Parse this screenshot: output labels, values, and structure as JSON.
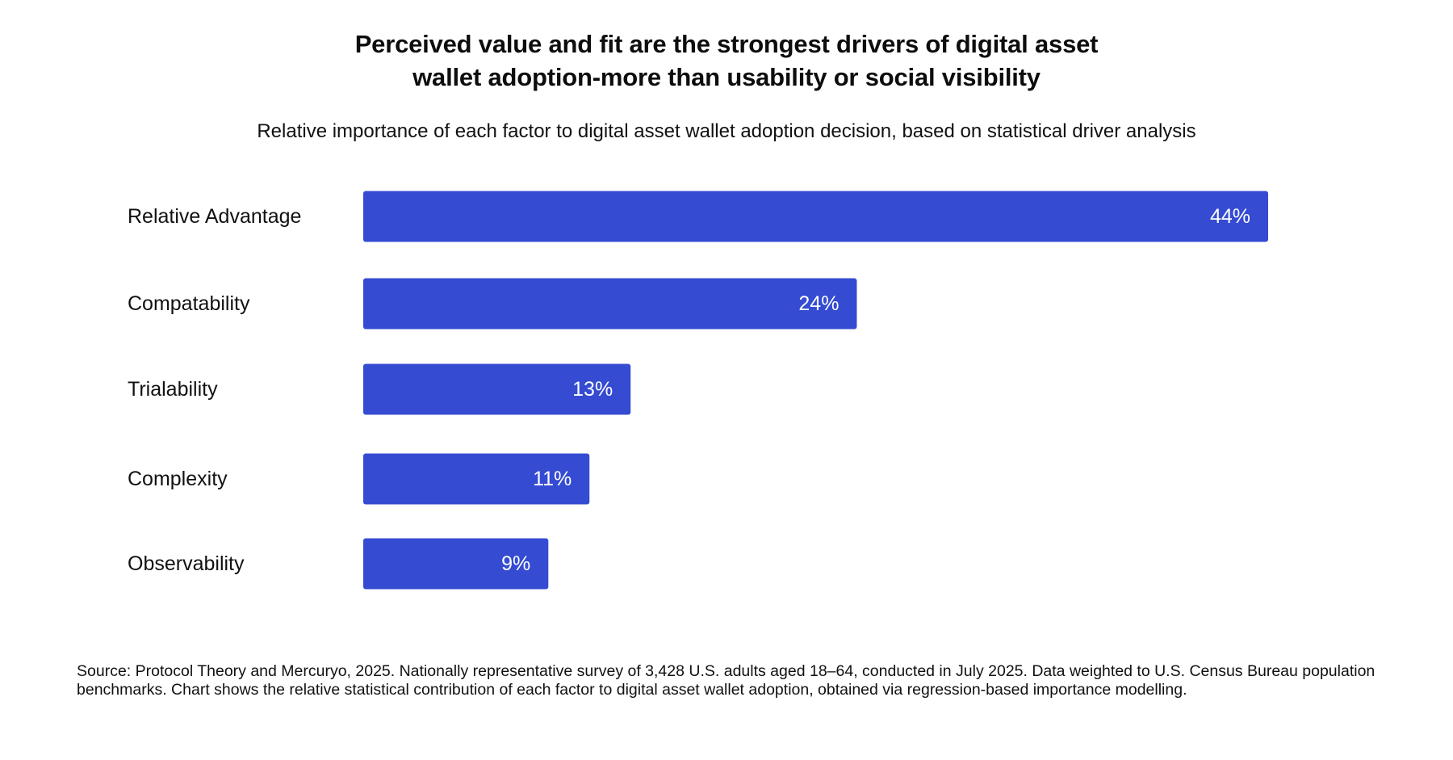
{
  "title_line1": "Perceived value and fit are the strongest drivers of digital asset",
  "title_line2": "wallet adoption-more than usability or social visibility",
  "subtitle": "Relative importance of each factor to digital asset wallet adoption decision, based on statistical driver analysis",
  "footnote": "Source: Protocol Theory and Mercuryo, 2025. Nationally representative survey of 3,428 U.S. adults aged 18–64, conducted in July 2025. Data weighted to U.S. Census Bureau population benchmarks. Chart shows the relative statistical contribution of each factor to digital asset wallet adoption, obtained via regression-based importance modelling.",
  "colors": {
    "bar": "#344bd2",
    "bar_label": "#ffffff",
    "text": "#111111"
  },
  "chart_data": {
    "type": "bar",
    "orientation": "horizontal",
    "title": "Perceived value and fit are the strongest drivers of digital asset wallet adoption-more than usability or social visibility",
    "subtitle": "Relative importance of each factor to digital asset wallet adoption decision, based on statistical driver analysis",
    "categories": [
      "Relative Advantage",
      "Compatability",
      "Trialability",
      "Complexity",
      "Observability"
    ],
    "values": [
      44,
      24,
      13,
      11,
      9
    ],
    "value_labels": [
      "44%",
      "24%",
      "13%",
      "11%",
      "9%"
    ],
    "unit": "%",
    "xlim": [
      0,
      44
    ],
    "grid": false,
    "legend": "none",
    "xlabel": "",
    "ylabel": ""
  }
}
